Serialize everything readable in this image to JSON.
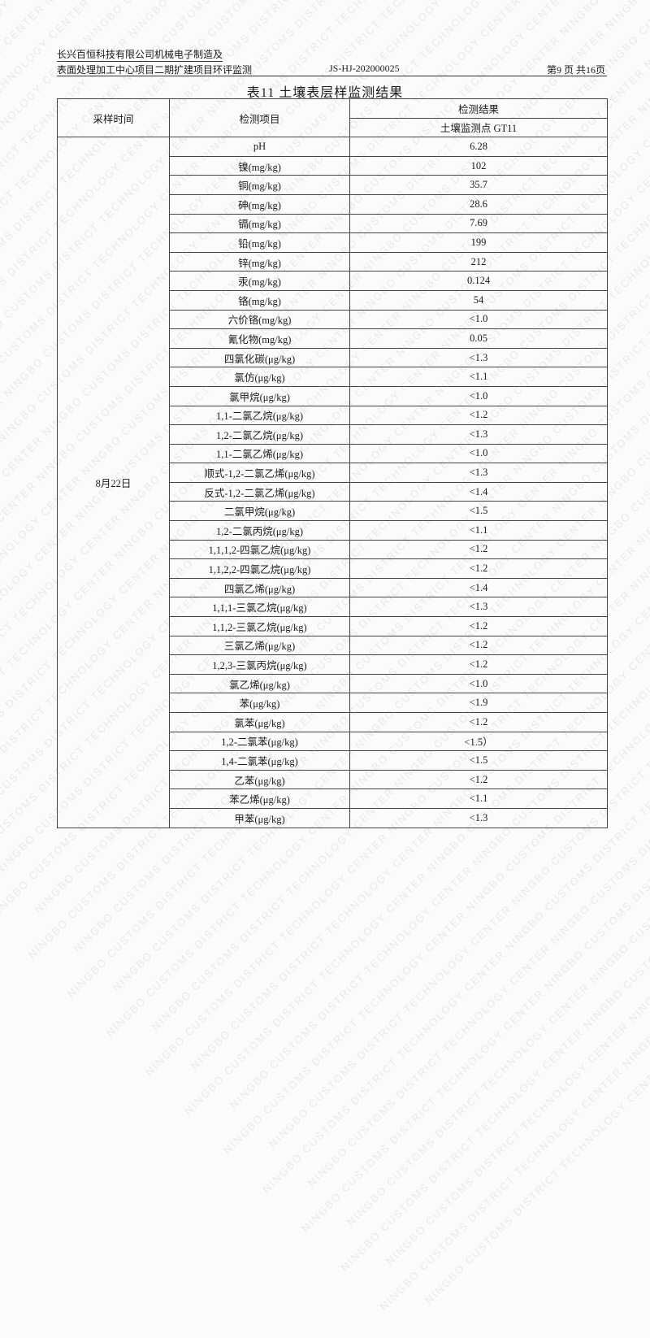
{
  "header": {
    "line1": "长兴百恒科技有限公司机械电子制造及",
    "line2": "表面处理加工中心项目二期扩建项目环评监测",
    "report_no": "JS-HJ-202000025",
    "page": "第9 页 共16页"
  },
  "watermark": "NINGBO CUSTOMS DISTRICT TECHNOLOGY CENTER",
  "title": "表11 土壤表层样监测结果",
  "table": {
    "col_time": "采样时间",
    "col_item": "检测项目",
    "col_result": "检测结果",
    "col_point": "土壤监测点 GT11",
    "date": "8月22日",
    "rows": [
      {
        "item": "pH",
        "value": "6.28"
      },
      {
        "item": "镍(mg/kg)",
        "value": "102"
      },
      {
        "item": "铜(mg/kg)",
        "value": "35.7"
      },
      {
        "item": "砷(mg/kg)",
        "value": "28.6"
      },
      {
        "item": "镉(mg/kg)",
        "value": "7.69"
      },
      {
        "item": "铅(mg/kg)",
        "value": "199"
      },
      {
        "item": "锌(mg/kg)",
        "value": "212"
      },
      {
        "item": "汞(mg/kg)",
        "value": "0.124"
      },
      {
        "item": "铬(mg/kg)",
        "value": "54"
      },
      {
        "item": "六价铬(mg/kg)",
        "value": "<1.0"
      },
      {
        "item": "氰化物(mg/kg)",
        "value": "0.05"
      },
      {
        "item": "四氯化碳(μg/kg)",
        "value": "<1.3"
      },
      {
        "item": "氯仿(μg/kg)",
        "value": "<1.1"
      },
      {
        "item": "氯甲烷(μg/kg)",
        "value": "<1.0"
      },
      {
        "item": "1,1-二氯乙烷(μg/kg)",
        "value": "<1.2"
      },
      {
        "item": "1,2-二氯乙烷(μg/kg)",
        "value": "<1.3"
      },
      {
        "item": "1,1-二氯乙烯(μg/kg)",
        "value": "<1.0"
      },
      {
        "item": "顺式-1,2-二氯乙烯(μg/kg)",
        "value": "<1.3"
      },
      {
        "item": "反式-1,2-二氯乙烯(μg/kg)",
        "value": "<1.4"
      },
      {
        "item": "二氯甲烷(μg/kg)",
        "value": "<1.5"
      },
      {
        "item": "1,2-二氯丙烷(μg/kg)",
        "value": "<1.1"
      },
      {
        "item": "1,1,1,2-四氯乙烷(μg/kg)",
        "value": "<1.2"
      },
      {
        "item": "1,1,2,2-四氯乙烷(μg/kg)",
        "value": "<1.2"
      },
      {
        "item": "四氯乙烯(μg/kg)",
        "value": "<1.4"
      },
      {
        "item": "1,1,1-三氯乙烷(μg/kg)",
        "value": "<1.3"
      },
      {
        "item": "1,1,2-三氯乙烷(μg/kg)",
        "value": "<1.2"
      },
      {
        "item": "三氯乙烯(μg/kg)",
        "value": "<1.2"
      },
      {
        "item": "1,2,3-三氯丙烷(μg/kg)",
        "value": "<1.2"
      },
      {
        "item": "氯乙烯(μg/kg)",
        "value": "<1.0"
      },
      {
        "item": "苯(μg/kg)",
        "value": "<1.9"
      },
      {
        "item": "氯苯(μg/kg)",
        "value": "<1.2"
      },
      {
        "item": "1,2-二氯苯(μg/kg)",
        "value": "<1.5）"
      },
      {
        "item": "1,4-二氯苯(μg/kg)",
        "value": "<1.5"
      },
      {
        "item": "乙苯(μg/kg)",
        "value": "<1.2"
      },
      {
        "item": "苯乙烯(μg/kg)",
        "value": "<1.1"
      },
      {
        "item": "甲苯(μg/kg)",
        "value": "<1.3"
      }
    ]
  }
}
